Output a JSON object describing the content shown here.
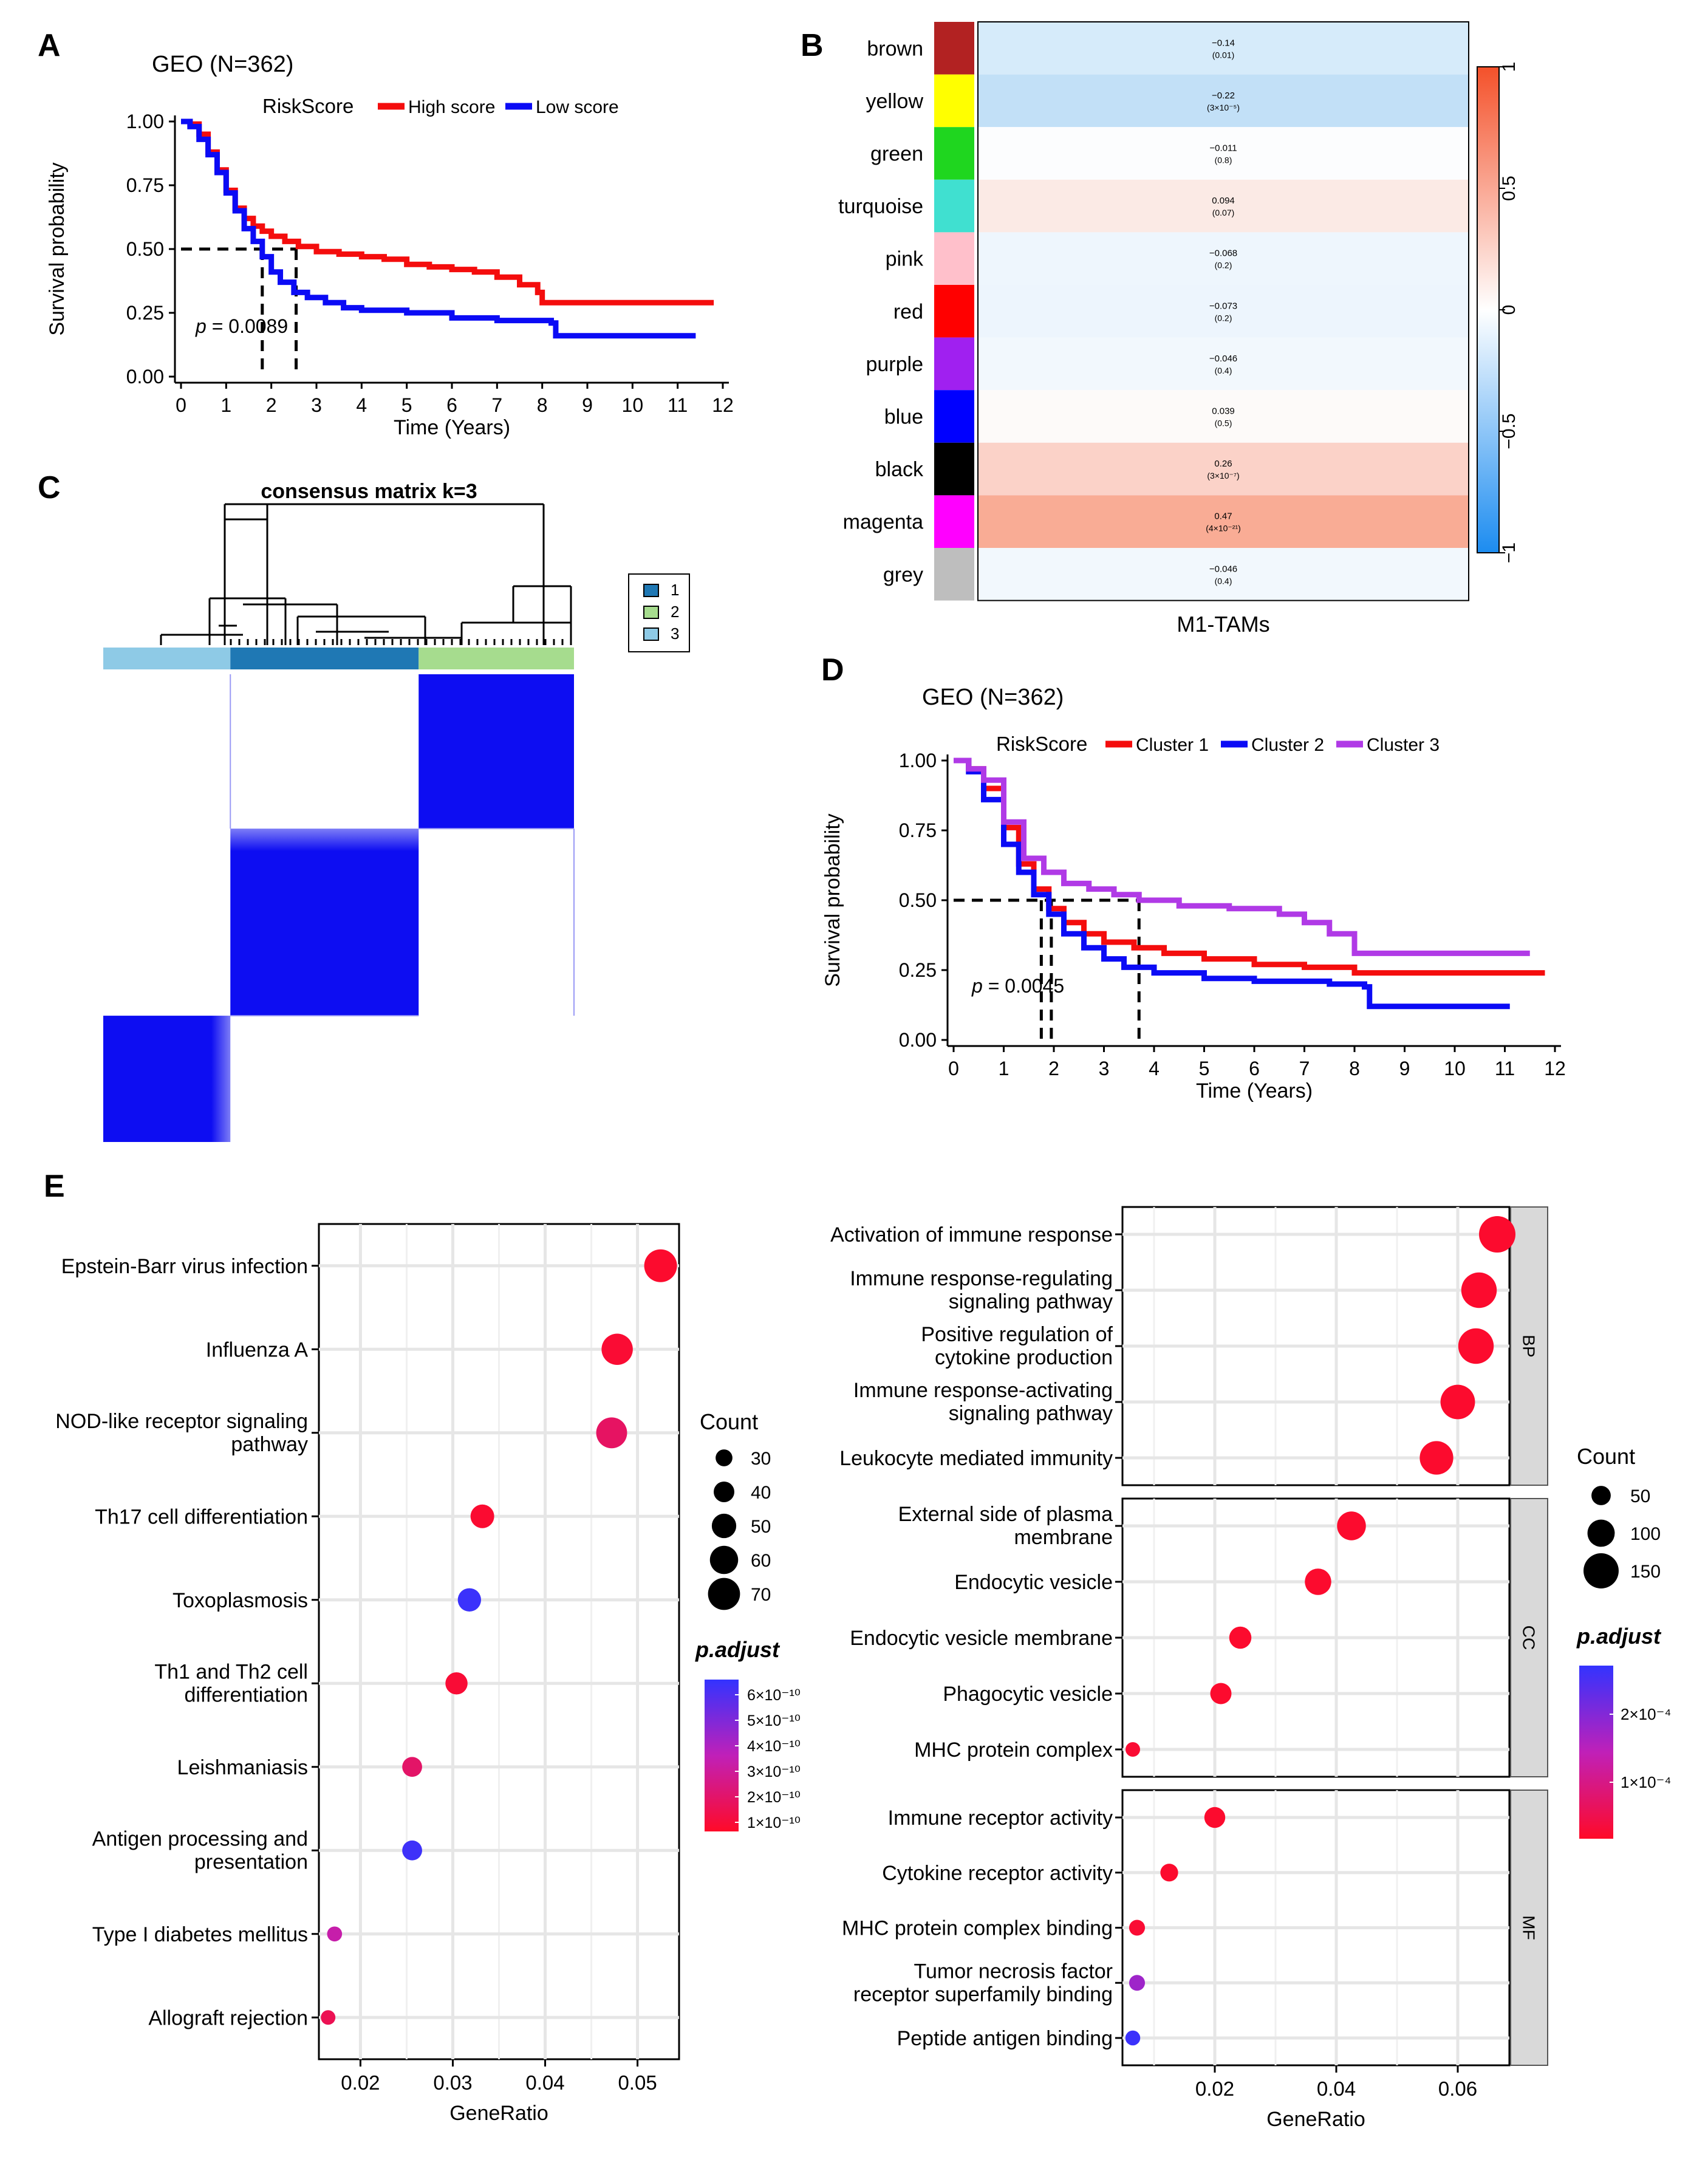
{
  "panels": {
    "A": "A",
    "B": "B",
    "C": "C",
    "D": "D",
    "E": "E"
  },
  "colors": {
    "red": "#f40d0d",
    "blue": "#0b0bf5",
    "purple": "#b03ae6",
    "panel_grey": "#d9d9d9",
    "grid": "#e6e6e6"
  },
  "chart_data": [
    {
      "id": "A",
      "type": "line",
      "title": "GEO (N=362)",
      "legend_title": "RiskScore",
      "legend_position": "top",
      "xlabel": "Time (Years)",
      "ylabel": "Survival probability",
      "xlim": [
        0,
        12
      ],
      "ylim": [
        0,
        1
      ],
      "xticks": [
        "0",
        "1",
        "2",
        "3",
        "4",
        "5",
        "6",
        "7",
        "8",
        "9",
        "10",
        "11",
        "12"
      ],
      "yticks": [
        "0.00",
        "0.25",
        "0.50",
        "0.75",
        "1.00"
      ],
      "pvalue": "= 0.0089",
      "median_lines": [
        1.8,
        2.55
      ],
      "series": [
        {
          "name": "High score",
          "color": "#f40d0d",
          "points": [
            [
              0,
              1
            ],
            [
              0.2,
              0.99
            ],
            [
              0.4,
              0.95
            ],
            [
              0.6,
              0.88
            ],
            [
              0.8,
              0.81
            ],
            [
              1.0,
              0.73
            ],
            [
              1.2,
              0.66
            ],
            [
              1.4,
              0.62
            ],
            [
              1.6,
              0.59
            ],
            [
              1.8,
              0.57
            ],
            [
              2.0,
              0.55
            ],
            [
              2.3,
              0.53
            ],
            [
              2.6,
              0.51
            ],
            [
              3.0,
              0.49
            ],
            [
              3.5,
              0.48
            ],
            [
              4.0,
              0.47
            ],
            [
              4.5,
              0.46
            ],
            [
              5.0,
              0.44
            ],
            [
              5.5,
              0.43
            ],
            [
              6.0,
              0.42
            ],
            [
              6.5,
              0.41
            ],
            [
              7.0,
              0.39
            ],
            [
              7.5,
              0.36
            ],
            [
              7.9,
              0.33
            ],
            [
              8.0,
              0.29
            ],
            [
              11.8,
              0.29
            ]
          ]
        },
        {
          "name": "Low score",
          "color": "#0b0bf5",
          "points": [
            [
              0,
              1
            ],
            [
              0.2,
              0.98
            ],
            [
              0.4,
              0.93
            ],
            [
              0.6,
              0.87
            ],
            [
              0.8,
              0.8
            ],
            [
              1.0,
              0.72
            ],
            [
              1.2,
              0.65
            ],
            [
              1.4,
              0.58
            ],
            [
              1.6,
              0.53
            ],
            [
              1.8,
              0.47
            ],
            [
              2.0,
              0.41
            ],
            [
              2.2,
              0.37
            ],
            [
              2.5,
              0.33
            ],
            [
              2.8,
              0.31
            ],
            [
              3.2,
              0.29
            ],
            [
              3.6,
              0.27
            ],
            [
              4.0,
              0.26
            ],
            [
              5.0,
              0.25
            ],
            [
              6.0,
              0.23
            ],
            [
              7.0,
              0.22
            ],
            [
              8.2,
              0.21
            ],
            [
              8.3,
              0.16
            ],
            [
              11.4,
              0.16
            ]
          ]
        }
      ]
    },
    {
      "id": "B",
      "type": "heatmap",
      "xlabel": "M1-TAMs",
      "colorbar_ticks": [
        "1",
        "0.5",
        "0",
        "−0.5",
        "−1"
      ],
      "rows": [
        {
          "module": "brown",
          "swatch": "#b22222",
          "r": -0.14,
          "value": "−0.14",
          "p": "(0.01)",
          "fill": "#d6ebfa"
        },
        {
          "module": "yellow",
          "swatch": "#ffff00",
          "r": -0.22,
          "value": "−0.22",
          "p": "(3×10⁻⁵)",
          "fill": "#c2e0f7"
        },
        {
          "module": "green",
          "swatch": "#1fd61f",
          "r": -0.011,
          "value": "−0.011",
          "p": "(0.8)",
          "fill": "#fcfdfe"
        },
        {
          "module": "turquoise",
          "swatch": "#40e0d0",
          "r": 0.094,
          "value": "0.094",
          "p": "(0.07)",
          "fill": "#fbeae5"
        },
        {
          "module": "pink",
          "swatch": "#ffc0cb",
          "r": -0.068,
          "value": "−0.068",
          "p": "(0.2)",
          "fill": "#eef6fd"
        },
        {
          "module": "red",
          "swatch": "#ff0000",
          "r": -0.073,
          "value": "−0.073",
          "p": "(0.2)",
          "fill": "#edf5fd"
        },
        {
          "module": "purple",
          "swatch": "#a020f0",
          "r": -0.046,
          "value": "−0.046",
          "p": "(0.4)",
          "fill": "#f2f8fd"
        },
        {
          "module": "blue",
          "swatch": "#0000ff",
          "r": 0.039,
          "value": "0.039",
          "p": "(0.5)",
          "fill": "#fdfaf9"
        },
        {
          "module": "black",
          "swatch": "#000000",
          "r": 0.26,
          "value": "0.26",
          "p": "(3×10⁻⁷)",
          "fill": "#fbd2c8"
        },
        {
          "module": "magenta",
          "swatch": "#ff00ff",
          "r": 0.47,
          "value": "0.47",
          "p": "(4×10⁻²¹)",
          "fill": "#f9ac95"
        },
        {
          "module": "grey",
          "swatch": "#bebebe",
          "r": -0.046,
          "value": "−0.046",
          "p": "(0.4)",
          "fill": "#f2f8fd"
        }
      ]
    },
    {
      "id": "C",
      "type": "heatmap",
      "title": "consensus matrix k=3",
      "legend": [
        {
          "label": "1",
          "color": "#1f78b4"
        },
        {
          "label": "2",
          "color": "#a6dc8e"
        },
        {
          "label": "3",
          "color": "#8ecae6"
        }
      ],
      "clusters_order": [
        "3",
        "1",
        "2"
      ],
      "cluster_fractions": [
        0.27,
        0.4,
        0.33
      ]
    },
    {
      "id": "D",
      "type": "line",
      "title": "GEO (N=362)",
      "legend_title": "RiskScore",
      "legend_position": "top",
      "xlabel": "Time (Years)",
      "ylabel": "Survival probability",
      "xlim": [
        0,
        12
      ],
      "ylim": [
        0,
        1
      ],
      "xticks": [
        "0",
        "1",
        "2",
        "3",
        "4",
        "5",
        "6",
        "7",
        "8",
        "9",
        "10",
        "11",
        "12"
      ],
      "yticks": [
        "0.00",
        "0.25",
        "0.50",
        "0.75",
        "1.00"
      ],
      "pvalue": "= 0.0045",
      "median_lines": [
        1.75,
        1.95,
        3.7
      ],
      "series": [
        {
          "name": "Cluster 1",
          "color": "#f40d0d",
          "points": [
            [
              0,
              1
            ],
            [
              0.3,
              0.97
            ],
            [
              0.6,
              0.9
            ],
            [
              1.0,
              0.76
            ],
            [
              1.3,
              0.63
            ],
            [
              1.6,
              0.54
            ],
            [
              1.9,
              0.47
            ],
            [
              2.2,
              0.42
            ],
            [
              2.6,
              0.38
            ],
            [
              3.0,
              0.35
            ],
            [
              3.6,
              0.33
            ],
            [
              4.2,
              0.31
            ],
            [
              5.0,
              0.29
            ],
            [
              6.0,
              0.27
            ],
            [
              7.0,
              0.26
            ],
            [
              8.0,
              0.24
            ],
            [
              11.8,
              0.24
            ]
          ]
        },
        {
          "name": "Cluster 2",
          "color": "#0b0bf5",
          "points": [
            [
              0,
              1
            ],
            [
              0.3,
              0.96
            ],
            [
              0.6,
              0.86
            ],
            [
              1.0,
              0.7
            ],
            [
              1.3,
              0.6
            ],
            [
              1.6,
              0.52
            ],
            [
              1.9,
              0.45
            ],
            [
              2.2,
              0.38
            ],
            [
              2.6,
              0.33
            ],
            [
              3.0,
              0.29
            ],
            [
              3.4,
              0.26
            ],
            [
              4.0,
              0.24
            ],
            [
              5.0,
              0.22
            ],
            [
              6.0,
              0.21
            ],
            [
              7.5,
              0.2
            ],
            [
              8.2,
              0.19
            ],
            [
              8.3,
              0.12
            ],
            [
              11.1,
              0.12
            ]
          ]
        },
        {
          "name": "Cluster 3",
          "color": "#b03ae6",
          "points": [
            [
              0,
              1
            ],
            [
              0.3,
              0.97
            ],
            [
              0.6,
              0.93
            ],
            [
              1.0,
              0.78
            ],
            [
              1.4,
              0.65
            ],
            [
              1.8,
              0.6
            ],
            [
              2.2,
              0.56
            ],
            [
              2.7,
              0.54
            ],
            [
              3.2,
              0.52
            ],
            [
              3.7,
              0.5
            ],
            [
              4.5,
              0.48
            ],
            [
              5.5,
              0.47
            ],
            [
              6.5,
              0.45
            ],
            [
              7.0,
              0.42
            ],
            [
              7.5,
              0.38
            ],
            [
              8.0,
              0.31
            ],
            [
              11.5,
              0.31
            ]
          ]
        }
      ]
    },
    {
      "id": "E_KEGG",
      "type": "scatter",
      "xlabel": "GeneRatio",
      "xlim": [
        0.0155,
        0.0545
      ],
      "xticks": [
        0.02,
        0.03,
        0.04,
        0.05
      ],
      "xtick_labels": [
        "0.02",
        "0.03",
        "0.04",
        "0.05"
      ],
      "size_legend_title": "Count",
      "size_legend": [
        30,
        40,
        50,
        60,
        70
      ],
      "color_legend_title": "p.adjust",
      "color_legend_ticks": [
        "6×10⁻¹⁰",
        "5×10⁻¹⁰",
        "4×10⁻¹⁰",
        "3×10⁻¹⁰",
        "2×10⁻¹⁰",
        "1×10⁻¹⁰"
      ],
      "terms": [
        {
          "label": [
            "Epstein-Barr virus infection"
          ],
          "ratio": 0.0525,
          "count": 72,
          "padj_norm": 0.02
        },
        {
          "label": [
            "Influenza A"
          ],
          "ratio": 0.0478,
          "count": 68,
          "padj_norm": 0.04
        },
        {
          "label": [
            "NOD-like receptor signaling",
            "pathway"
          ],
          "ratio": 0.0472,
          "count": 67,
          "padj_norm": 0.2
        },
        {
          "label": [
            "Th17 cell differentiation"
          ],
          "ratio": 0.0332,
          "count": 48,
          "padj_norm": 0.03
        },
        {
          "label": [
            "Toxoplasmosis"
          ],
          "ratio": 0.0318,
          "count": 47,
          "padj_norm": 0.97
        },
        {
          "label": [
            "Th1 and Th2 cell",
            "differentiation"
          ],
          "ratio": 0.0304,
          "count": 44,
          "padj_norm": 0.05
        },
        {
          "label": [
            "Leishmaniasis"
          ],
          "ratio": 0.0256,
          "count": 38,
          "padj_norm": 0.22
        },
        {
          "label": [
            "Antigen processing and",
            "presentation"
          ],
          "ratio": 0.0256,
          "count": 38,
          "padj_norm": 0.96
        },
        {
          "label": [
            "Type I diabetes mellitus"
          ],
          "ratio": 0.0172,
          "count": 25,
          "padj_norm": 0.45
        },
        {
          "label": [
            "Allograft rejection"
          ],
          "ratio": 0.0165,
          "count": 24,
          "padj_norm": 0.15
        }
      ]
    },
    {
      "id": "E_GO",
      "type": "scatter",
      "xlabel": "GeneRatio",
      "xlim": [
        0.0048,
        0.0685
      ],
      "xticks": [
        0.02,
        0.04,
        0.06
      ],
      "xtick_labels": [
        "0.02",
        "0.04",
        "0.06"
      ],
      "size_legend_title": "Count",
      "size_legend": [
        50,
        100,
        150
      ],
      "color_legend_title": "p.adjust",
      "color_legend_ticks": [
        "2×10⁻⁴",
        "1×10⁻⁴"
      ],
      "facets": [
        {
          "name": "BP",
          "terms": [
            {
              "label": [
                "Activation of immune response"
              ],
              "ratio": 0.0665,
              "count": 158,
              "padj_norm": 0.02
            },
            {
              "label": [
                "Immune response-regulating",
                "signaling pathway"
              ],
              "ratio": 0.0635,
              "count": 152,
              "padj_norm": 0.02
            },
            {
              "label": [
                "Positive regulation of",
                "cytokine production"
              ],
              "ratio": 0.063,
              "count": 152,
              "padj_norm": 0.02
            },
            {
              "label": [
                "Immune response-activating",
                "signaling pathway"
              ],
              "ratio": 0.06,
              "count": 146,
              "padj_norm": 0.02
            },
            {
              "label": [
                "Leukocyte mediated immunity"
              ],
              "ratio": 0.0565,
              "count": 140,
              "padj_norm": 0.02
            }
          ]
        },
        {
          "name": "CC",
          "terms": [
            {
              "label": [
                "External side of plasma",
                "membrane"
              ],
              "ratio": 0.0425,
              "count": 110,
              "padj_norm": 0.02
            },
            {
              "label": [
                "Endocytic vesicle"
              ],
              "ratio": 0.037,
              "count": 95,
              "padj_norm": 0.02
            },
            {
              "label": [
                "Endocytic vesicle membrane"
              ],
              "ratio": 0.0242,
              "count": 68,
              "padj_norm": 0.02
            },
            {
              "label": [
                "Phagocytic vesicle"
              ],
              "ratio": 0.021,
              "count": 62,
              "padj_norm": 0.02
            },
            {
              "label": [
                "MHC protein complex"
              ],
              "ratio": 0.0065,
              "count": 20,
              "padj_norm": 0.04
            }
          ]
        },
        {
          "name": "MF",
          "terms": [
            {
              "label": [
                "Immune receptor activity"
              ],
              "ratio": 0.02,
              "count": 60,
              "padj_norm": 0.02
            },
            {
              "label": [
                "Cytokine receptor activity"
              ],
              "ratio": 0.0125,
              "count": 40,
              "padj_norm": 0.02
            },
            {
              "label": [
                "MHC protein complex binding"
              ],
              "ratio": 0.0072,
              "count": 28,
              "padj_norm": 0.04
            },
            {
              "label": [
                "Tumor necrosis factor",
                "receptor superfamily binding"
              ],
              "ratio": 0.0072,
              "count": 28,
              "padj_norm": 0.62
            },
            {
              "label": [
                "Peptide antigen binding"
              ],
              "ratio": 0.0065,
              "count": 22,
              "padj_norm": 0.97
            }
          ]
        }
      ]
    }
  ]
}
